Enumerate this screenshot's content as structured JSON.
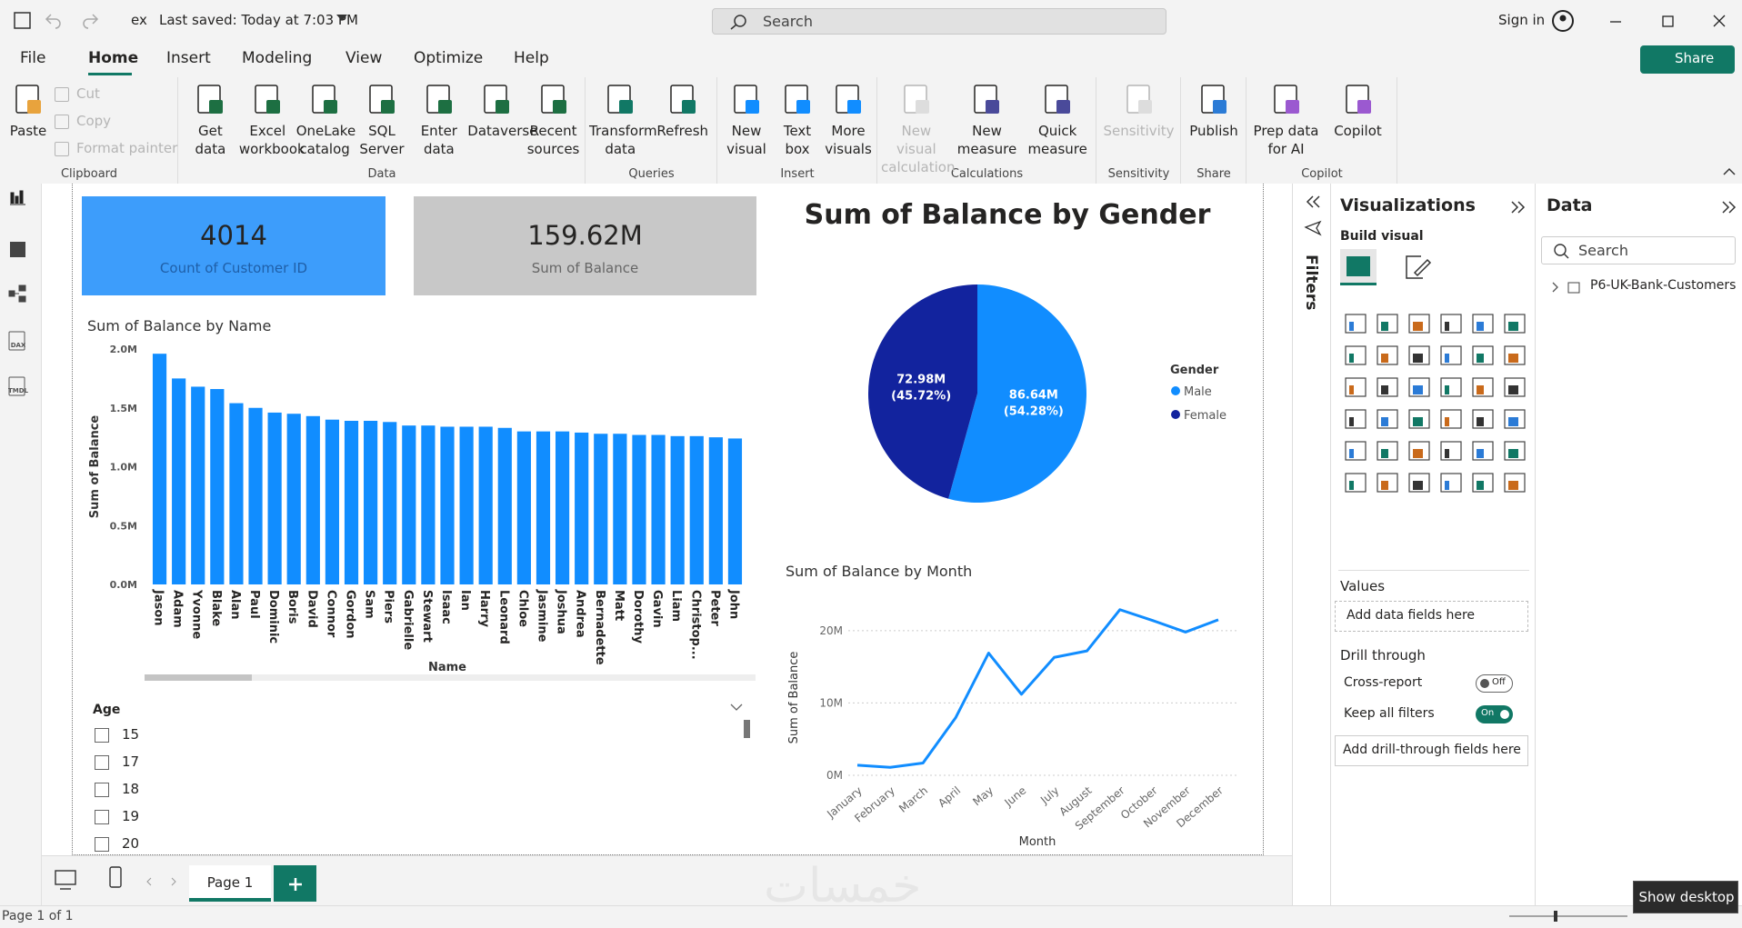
{
  "title_bar": {
    "file": "ex",
    "saved": "Last saved: Today at 7:03 PM",
    "search": "Search",
    "sign_in": "Sign in"
  },
  "menu": {
    "tabs": [
      "File",
      "Home",
      "Insert",
      "Modeling",
      "View",
      "Optimize",
      "Help"
    ],
    "share": "Share"
  },
  "ribbon": [
    {
      "label": "Clipboard",
      "items": [
        {
          "label": "Paste"
        },
        {
          "label": "Cut",
          "disabled": true
        },
        {
          "label": "Copy",
          "disabled": true
        },
        {
          "label": "Format painter",
          "disabled": true
        }
      ]
    },
    {
      "label": "Data",
      "items": [
        {
          "label": "Get data"
        },
        {
          "label": "Excel workbook"
        },
        {
          "label": "OneLake catalog"
        },
        {
          "label": "SQL Server"
        },
        {
          "label": "Enter data"
        },
        {
          "label": "Dataverse"
        },
        {
          "label": "Recent sources"
        }
      ]
    },
    {
      "label": "Queries",
      "items": [
        {
          "label": "Transform data"
        },
        {
          "label": "Refresh"
        }
      ]
    },
    {
      "label": "Insert",
      "items": [
        {
          "label": "New visual"
        },
        {
          "label": "Text box"
        },
        {
          "label": "More visuals"
        }
      ]
    },
    {
      "label": "Calculations",
      "items": [
        {
          "label": "New visual calculation",
          "disabled": true
        },
        {
          "label": "New measure"
        },
        {
          "label": "Quick measure"
        }
      ]
    },
    {
      "label": "Sensitivity",
      "items": [
        {
          "label": "Sensitivity",
          "disabled": true
        }
      ]
    },
    {
      "label": "Share",
      "items": [
        {
          "label": "Publish"
        }
      ]
    },
    {
      "label": "Copilot",
      "items": [
        {
          "label": "Prep data for AI"
        },
        {
          "label": "Copilot"
        }
      ]
    }
  ],
  "nav": [
    "DAX",
    "TMDL"
  ],
  "cards": [
    {
      "value": 4014,
      "label": "Count of Customer ID",
      "color": "#3d9dfb"
    },
    {
      "value": "159.62M",
      "label": "Sum of Balance",
      "color": "#c8c8c8"
    }
  ],
  "chart_data": [
    {
      "type": "bar",
      "title": "Sum of Balance by Name",
      "x_label": "Name",
      "y_label": "Sum of Balance",
      "color": "#118dff",
      "categories": [
        "Jason",
        "Adam",
        "Yvonne",
        "Blake",
        "Alan",
        "Paul",
        "Dominic",
        "Boris",
        "David",
        "Connor",
        "Gordon",
        "Sam",
        "Piers",
        "Gabrielle",
        "Stewart",
        "Isaac",
        "Ian",
        "Harry",
        "Leonard",
        "Chloe",
        "Jasmine",
        "Joshua",
        "Andrea",
        "Bernadette",
        "Matt",
        "Dorothy",
        "Gavin",
        "Liam",
        "Christop...",
        "Peter",
        "John"
      ],
      "values": [
        1.96,
        1.75,
        1.68,
        1.66,
        1.54,
        1.5,
        1.46,
        1.45,
        1.43,
        1.4,
        1.39,
        1.39,
        1.38,
        1.35,
        1.35,
        1.34,
        1.34,
        1.34,
        1.33,
        1.3,
        1.3,
        1.3,
        1.29,
        1.28,
        1.28,
        1.27,
        1.27,
        1.26,
        1.26,
        1.25,
        1.24
      ],
      "ylim": [
        0,
        2
      ],
      "yticks": [
        {
          "value": 0,
          "label": "0.0M"
        },
        {
          "value": 0.5,
          "label": "0.5M"
        },
        {
          "value": 1,
          "label": "1.0M"
        },
        {
          "value": 1.5,
          "label": "1.5M"
        },
        {
          "value": 2,
          "label": "2.0M"
        }
      ],
      "grid": false
    },
    {
      "type": "pie",
      "title": "Sum of Balance by Gender",
      "legend_title": "Gender",
      "legend": "right",
      "categories": [
        "Male",
        "Female"
      ],
      "values": [
        86.64,
        72.98
      ],
      "value_labels": [
        "86.64M",
        "72.98M"
      ],
      "percent_labels": [
        "(54.28%)",
        "(45.72%)"
      ],
      "colors": [
        "#118dff",
        "#12239e"
      ]
    },
    {
      "type": "line",
      "title": "Sum of Balance by Month",
      "x_label": "Month",
      "y_label": "Sum of Balance",
      "color": "#118dff",
      "categories": [
        "January",
        "February",
        "March",
        "April",
        "May",
        "June",
        "July",
        "August",
        "September",
        "October",
        "November",
        "December"
      ],
      "values": [
        1.4,
        1.1,
        1.7,
        8.0,
        16.9,
        11.2,
        16.3,
        17.2,
        22.9,
        21.4,
        19.8,
        21.5
      ],
      "ylim": [
        0,
        24
      ],
      "yticks": [
        {
          "value": 0,
          "label": "0M"
        },
        {
          "value": 10,
          "label": "10M"
        },
        {
          "value": 20,
          "label": "20M"
        }
      ],
      "grid": true
    }
  ],
  "slicer": {
    "title": "Age",
    "items": [
      15,
      17,
      18,
      19,
      20
    ]
  },
  "filters": "Filters",
  "visualizations": {
    "title": "Visualizations",
    "build": "Build visual",
    "values": "Values",
    "values_well": "Add data fields here",
    "drill": "Drill through",
    "cross_report": "Cross-report",
    "cross_state": "Off",
    "keep_filters": "Keep all filters",
    "keep_state": "On",
    "drill_well": "Add drill-through fields here"
  },
  "data_pane": {
    "title": "Data",
    "search": "Search",
    "table": "P6-UK-Bank-Customers"
  },
  "footer": {
    "page_tab": "Page 1",
    "status": "Page 1 of 1",
    "tooltip": "Show desktop"
  },
  "watermark": "خمسات"
}
